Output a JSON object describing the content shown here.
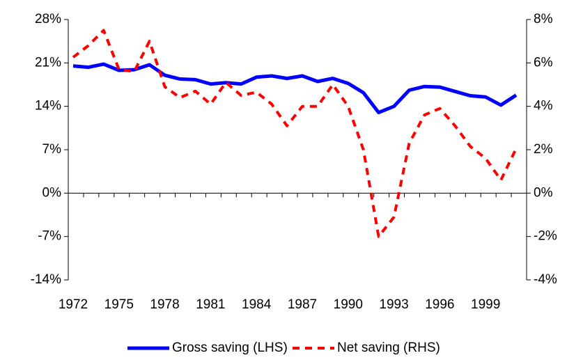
{
  "chart_data": {
    "type": "line",
    "categories": [
      "1972",
      null,
      null,
      "1975",
      null,
      null,
      "1978",
      null,
      null,
      "1981",
      null,
      null,
      "1984",
      null,
      null,
      "1987",
      null,
      null,
      "1990",
      null,
      null,
      "1993",
      null,
      null,
      "1996",
      null,
      null,
      "1999",
      null,
      null
    ],
    "series": [
      {
        "name": "Gross saving (LHS)",
        "color": "#0000ff",
        "axis": "y",
        "dash": "solid",
        "values": [
          20.5,
          20.3,
          20.8,
          19.8,
          19.9,
          20.7,
          19.0,
          18.4,
          18.3,
          17.6,
          17.8,
          17.6,
          18.7,
          18.9,
          18.5,
          18.9,
          18.0,
          18.5,
          17.7,
          16.2,
          13.0,
          14.0,
          16.6,
          17.2,
          17.1,
          16.4,
          15.7,
          15.5,
          14.2,
          15.8
        ]
      },
      {
        "name": "Net saving (RHS)",
        "color": "#ff0000",
        "axis": "y2",
        "dash": "dashed",
        "values": [
          6.26,
          6.8,
          7.5,
          5.7,
          5.6,
          7.0,
          4.9,
          4.4,
          4.7,
          4.1,
          5.1,
          4.5,
          4.65,
          4.1,
          3.1,
          4.0,
          4.0,
          5.0,
          4.0,
          2.0,
          -2.0,
          -1.1,
          2.3,
          3.6,
          3.9,
          3.1,
          2.15,
          1.6,
          0.6,
          2.05
        ]
      }
    ],
    "ylim": [
      -14,
      28
    ],
    "yticks": [
      {
        "value": -14,
        "label": "-14%"
      },
      {
        "value": -7,
        "label": "-7%"
      },
      {
        "value": 0,
        "label": "0%"
      },
      {
        "value": 7,
        "label": "7%"
      },
      {
        "value": 14,
        "label": "14%"
      },
      {
        "value": 21,
        "label": "21%"
      },
      {
        "value": 28,
        "label": "28%"
      }
    ],
    "y2lim": [
      -4,
      8
    ],
    "y2ticks": [
      {
        "value": -4,
        "label": "-4%"
      },
      {
        "value": -2,
        "label": "-2%"
      },
      {
        "value": 0,
        "label": "0%"
      },
      {
        "value": 2,
        "label": "2%"
      },
      {
        "value": 4,
        "label": "4%"
      },
      {
        "value": 6,
        "label": "6%"
      },
      {
        "value": 8,
        "label": "8%"
      }
    ],
    "grid": false,
    "legend": "bottom"
  }
}
